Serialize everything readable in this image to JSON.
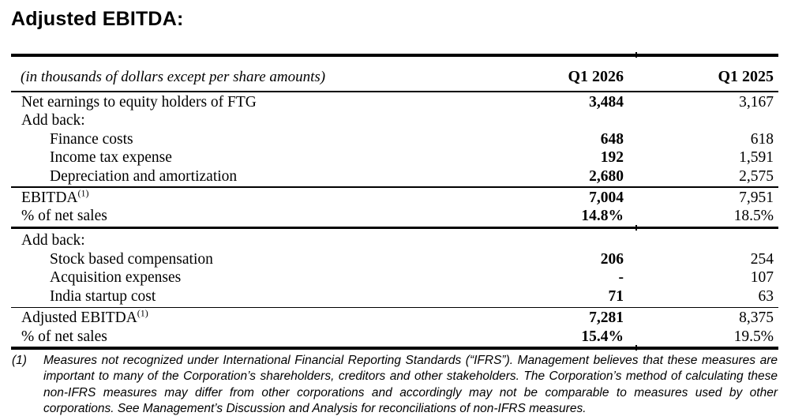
{
  "title": "Adjusted EBITDA:",
  "colors": {
    "text": "#000000",
    "background": "#ffffff",
    "rule": "#000000"
  },
  "table": {
    "caption": "(in thousands of dollars except per share amounts)",
    "columns": [
      "Q1 2026",
      "Q1 2025"
    ],
    "rows": [
      {
        "label": "Net earnings to equity holders of FTG",
        "q1_2026": "3,484",
        "q1_2025": "3,167",
        "indent": false
      },
      {
        "label": "Add back:",
        "q1_2026": "",
        "q1_2025": "",
        "indent": false
      },
      {
        "label": "Finance costs",
        "q1_2026": "648",
        "q1_2025": "618",
        "indent": true
      },
      {
        "label": "Income tax expense",
        "q1_2026": "192",
        "q1_2025": "1,591",
        "indent": true
      },
      {
        "label": "Depreciation and amortization",
        "q1_2026": "2,680",
        "q1_2025": "2,575",
        "indent": true
      },
      {
        "rule": "thin"
      },
      {
        "label": "EBITDA",
        "sup": "(1)",
        "q1_2026": "7,004",
        "q1_2025": "7,951",
        "indent": false
      },
      {
        "label": "% of net sales",
        "q1_2026": "14.8%",
        "q1_2025": "18.5%",
        "indent": false
      },
      {
        "rule": "thick"
      },
      {
        "label": "Add back:",
        "q1_2026": "",
        "q1_2025": "",
        "indent": false
      },
      {
        "label": "Stock based compensation",
        "q1_2026": "206",
        "q1_2025": "254",
        "indent": true
      },
      {
        "label": "Acquisition expenses",
        "q1_2026": "-",
        "q1_2025": "107",
        "indent": true
      },
      {
        "label": "India startup cost",
        "q1_2026": "71",
        "q1_2025": "63",
        "indent": true
      },
      {
        "rule": "thin"
      },
      {
        "label": "Adjusted EBITDA",
        "sup": "(1)",
        "q1_2026": "7,281",
        "q1_2025": "8,375",
        "indent": false
      },
      {
        "label": "% of net sales",
        "q1_2026": "15.4%",
        "q1_2025": "19.5%",
        "indent": false
      },
      {
        "rule": "thick"
      }
    ]
  },
  "footnote": {
    "marker": "(1)",
    "text": "Measures not recognized under International Financial Reporting Standards (“IFRS”). Management believes that these measures are important to many of the Corporation’s shareholders, creditors and other stakeholders. The Corporation’s method of calculating these non-IFRS measures may differ from other corporations and accordingly may not be comparable to measures used by other corporations. See Management’s Discussion and Analysis for reconciliations of non-IFRS measures."
  }
}
